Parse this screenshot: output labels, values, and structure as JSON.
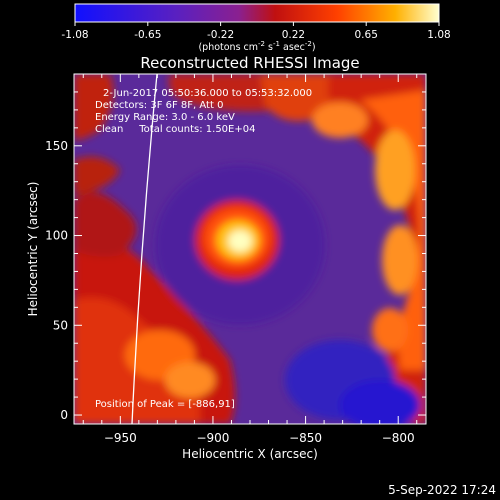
{
  "colorbar": {
    "ticks": [
      "-1.08",
      "-0.65",
      "-0.22",
      "0.22",
      "0.65",
      "1.08"
    ],
    "units_prefix": "(photons cm",
    "units_exp1": "-2",
    "units_mid": " s",
    "units_exp2": "-1",
    "units_mid2": " asec",
    "units_exp3": "-2",
    "units_suffix": ")"
  },
  "chart_data": {
    "type": "heatmap",
    "title": "Reconstructed RHESSI Image",
    "xlabel": "Heliocentric X (arcsec)",
    "ylabel": "Heliocentric Y (arcsec)",
    "xlim": [
      -975,
      -785
    ],
    "ylim": [
      -5,
      190
    ],
    "xticks": [
      -950,
      -900,
      -850,
      -800
    ],
    "yticks": [
      0,
      50,
      100,
      150
    ],
    "colorbar_range": [
      -1.08,
      1.08
    ],
    "peak": {
      "x": -886,
      "y": 91
    },
    "annotations": [
      "2-Jun-2017 05:50:36.000 to 05:53:32.000",
      "Detectors: 3F 6F 8F, Att 0",
      "Energy Range: 3.0 - 6.0 keV",
      "Clean     Total counts: 1.50E+04",
      "Position of Peak = [-886,91]"
    ]
  },
  "footer": {
    "timestamp": "5-Sep-2022 17:24"
  }
}
